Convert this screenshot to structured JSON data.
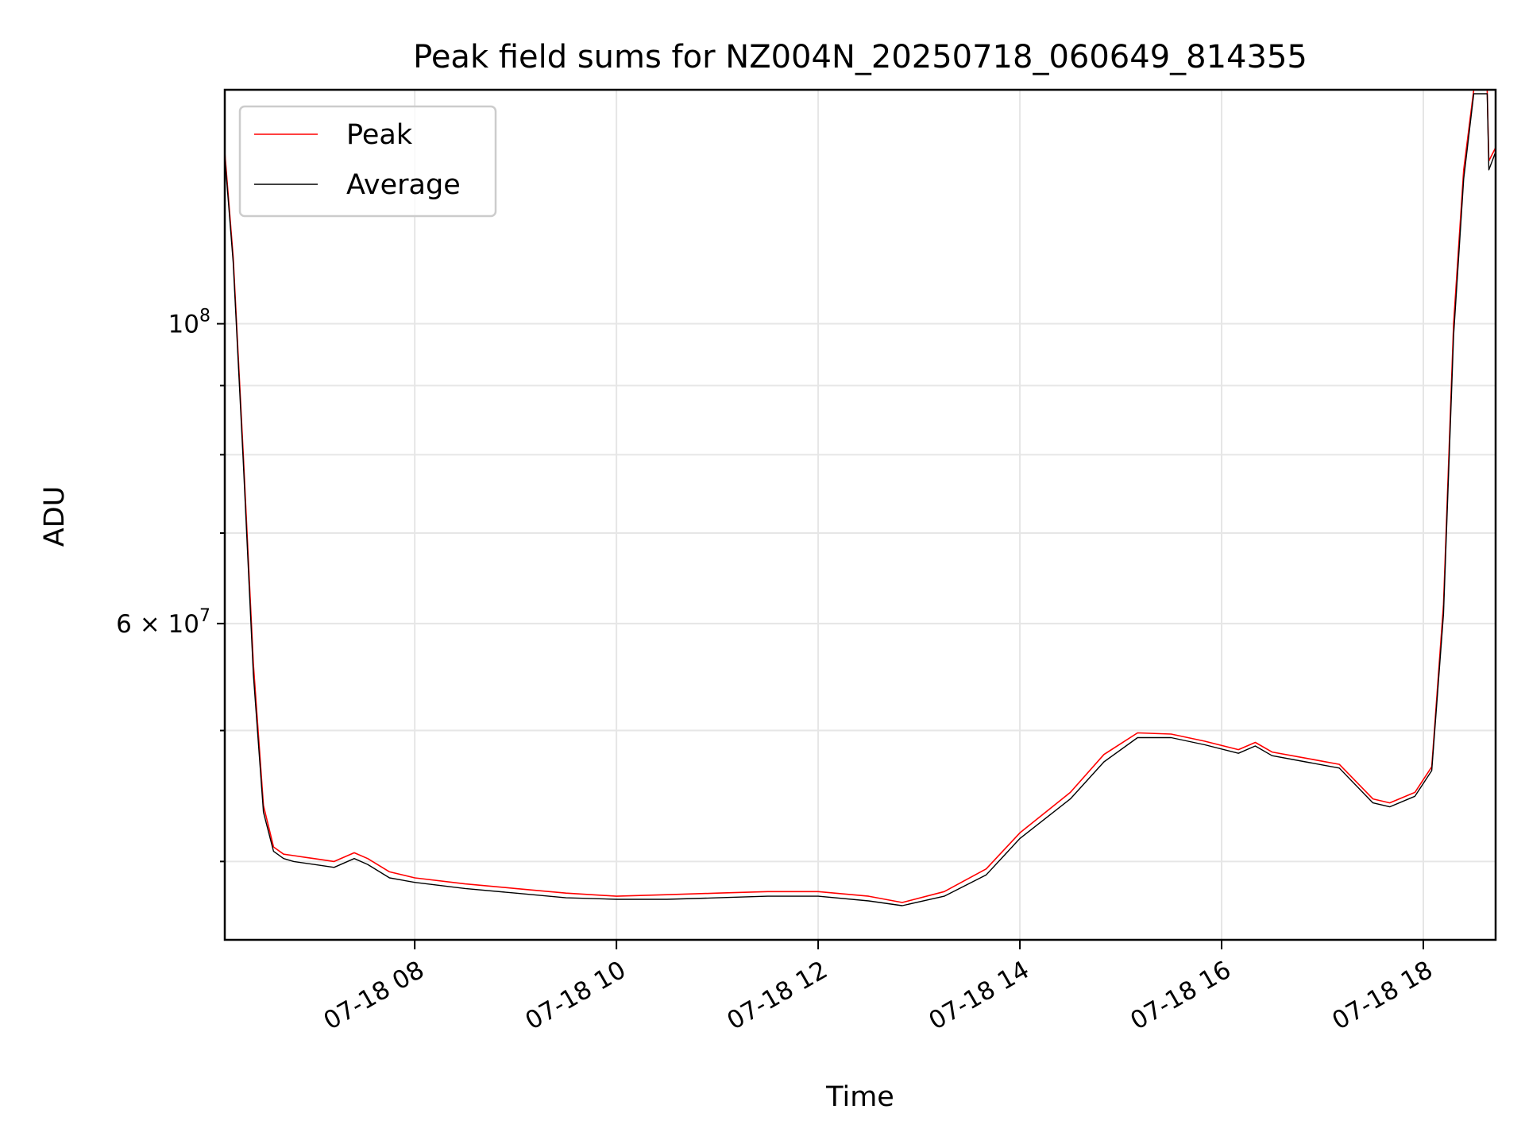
{
  "chart_data": {
    "type": "line",
    "title": "Peak field sums for NZ004N_20250718_060649_814355",
    "xlabel": "Time",
    "ylabel": "ADU",
    "y_scale": "log",
    "x_range": [
      "07-18 06:07",
      "07-18 18:43"
    ],
    "ylim": [
      35000000,
      149000000
    ],
    "grid": true,
    "legend_position": "upper-left",
    "x_ticks": [
      {
        "t": "07-18 08:00",
        "label": "07-18 08"
      },
      {
        "t": "07-18 10:00",
        "label": "07-18 10"
      },
      {
        "t": "07-18 12:00",
        "label": "07-18 12"
      },
      {
        "t": "07-18 14:00",
        "label": "07-18 14"
      },
      {
        "t": "07-18 16:00",
        "label": "07-18 16"
      },
      {
        "t": "07-18 18:00",
        "label": "07-18 18"
      }
    ],
    "y_major_ticks": [
      {
        "v": 100000000,
        "base": "10",
        "exp": "8"
      },
      {
        "v": 60000000,
        "base": "6 × 10",
        "exp": "7"
      }
    ],
    "y_minor_ticks": [
      40000000,
      50000000,
      70000000,
      80000000,
      90000000
    ],
    "series": [
      {
        "name": "Peak",
        "color": "#ff0000",
        "x": [
          "07-18 06:07",
          "07-18 06:12",
          "07-18 06:18",
          "07-18 06:24",
          "07-18 06:30",
          "07-18 06:36",
          "07-18 06:42",
          "07-18 06:48",
          "07-18 07:00",
          "07-18 07:12",
          "07-18 07:24",
          "07-18 07:32",
          "07-18 07:45",
          "07-18 08:00",
          "07-18 08:30",
          "07-18 09:00",
          "07-18 09:30",
          "07-18 10:00",
          "07-18 10:30",
          "07-18 11:00",
          "07-18 11:30",
          "07-18 12:00",
          "07-18 12:30",
          "07-18 12:50",
          "07-18 13:15",
          "07-18 13:40",
          "07-18 14:00",
          "07-18 14:30",
          "07-18 14:50",
          "07-18 15:10",
          "07-18 15:30",
          "07-18 15:50",
          "07-18 16:10",
          "07-18 16:20",
          "07-18 16:30",
          "07-18 16:50",
          "07-18 17:10",
          "07-18 17:30",
          "07-18 17:40",
          "07-18 17:55",
          "07-18 18:05",
          "07-18 18:12",
          "07-18 18:18",
          "07-18 18:24",
          "07-18 18:30",
          "07-18 18:38",
          "07-18 18:39",
          "07-18 18:43"
        ],
        "y": [
          134000000,
          112000000,
          80000000,
          56000000,
          44000000,
          41000000,
          40500000,
          40400000,
          40200000,
          40000000,
          40600000,
          40200000,
          39300000,
          38900000,
          38500000,
          38200000,
          37900000,
          37700000,
          37800000,
          37900000,
          38000000,
          38000000,
          37700000,
          37300000,
          38000000,
          39500000,
          42000000,
          45000000,
          48000000,
          49800000,
          49700000,
          49100000,
          48400000,
          49000000,
          48200000,
          47700000,
          47200000,
          44500000,
          44200000,
          45000000,
          47000000,
          62000000,
          100000000,
          130000000,
          149000000,
          149000000,
          132000000,
          135000000
        ]
      },
      {
        "name": "Average",
        "color": "#000000",
        "x": [
          "07-18 06:07",
          "07-18 06:12",
          "07-18 06:18",
          "07-18 06:24",
          "07-18 06:30",
          "07-18 06:36",
          "07-18 06:42",
          "07-18 06:48",
          "07-18 07:00",
          "07-18 07:12",
          "07-18 07:24",
          "07-18 07:32",
          "07-18 07:45",
          "07-18 08:00",
          "07-18 08:30",
          "07-18 09:00",
          "07-18 09:30",
          "07-18 10:00",
          "07-18 10:30",
          "07-18 11:00",
          "07-18 11:30",
          "07-18 12:00",
          "07-18 12:30",
          "07-18 12:50",
          "07-18 13:15",
          "07-18 13:40",
          "07-18 14:00",
          "07-18 14:30",
          "07-18 14:50",
          "07-18 15:10",
          "07-18 15:30",
          "07-18 15:50",
          "07-18 16:10",
          "07-18 16:20",
          "07-18 16:30",
          "07-18 16:50",
          "07-18 17:10",
          "07-18 17:30",
          "07-18 17:40",
          "07-18 17:55",
          "07-18 18:05",
          "07-18 18:12",
          "07-18 18:18",
          "07-18 18:24",
          "07-18 18:30",
          "07-18 18:38",
          "07-18 18:39",
          "07-18 18:43"
        ],
        "y": [
          133000000,
          111000000,
          79000000,
          55000000,
          43500000,
          40700000,
          40200000,
          40000000,
          39800000,
          39600000,
          40200000,
          39800000,
          38900000,
          38600000,
          38200000,
          37900000,
          37600000,
          37500000,
          37500000,
          37600000,
          37700000,
          37700000,
          37400000,
          37100000,
          37700000,
          39100000,
          41600000,
          44500000,
          47400000,
          49400000,
          49400000,
          48800000,
          48100000,
          48700000,
          47900000,
          47400000,
          46900000,
          44200000,
          43900000,
          44700000,
          46700000,
          61000000,
          98000000,
          128000000,
          148000000,
          148000000,
          130000000,
          134000000
        ]
      }
    ]
  }
}
